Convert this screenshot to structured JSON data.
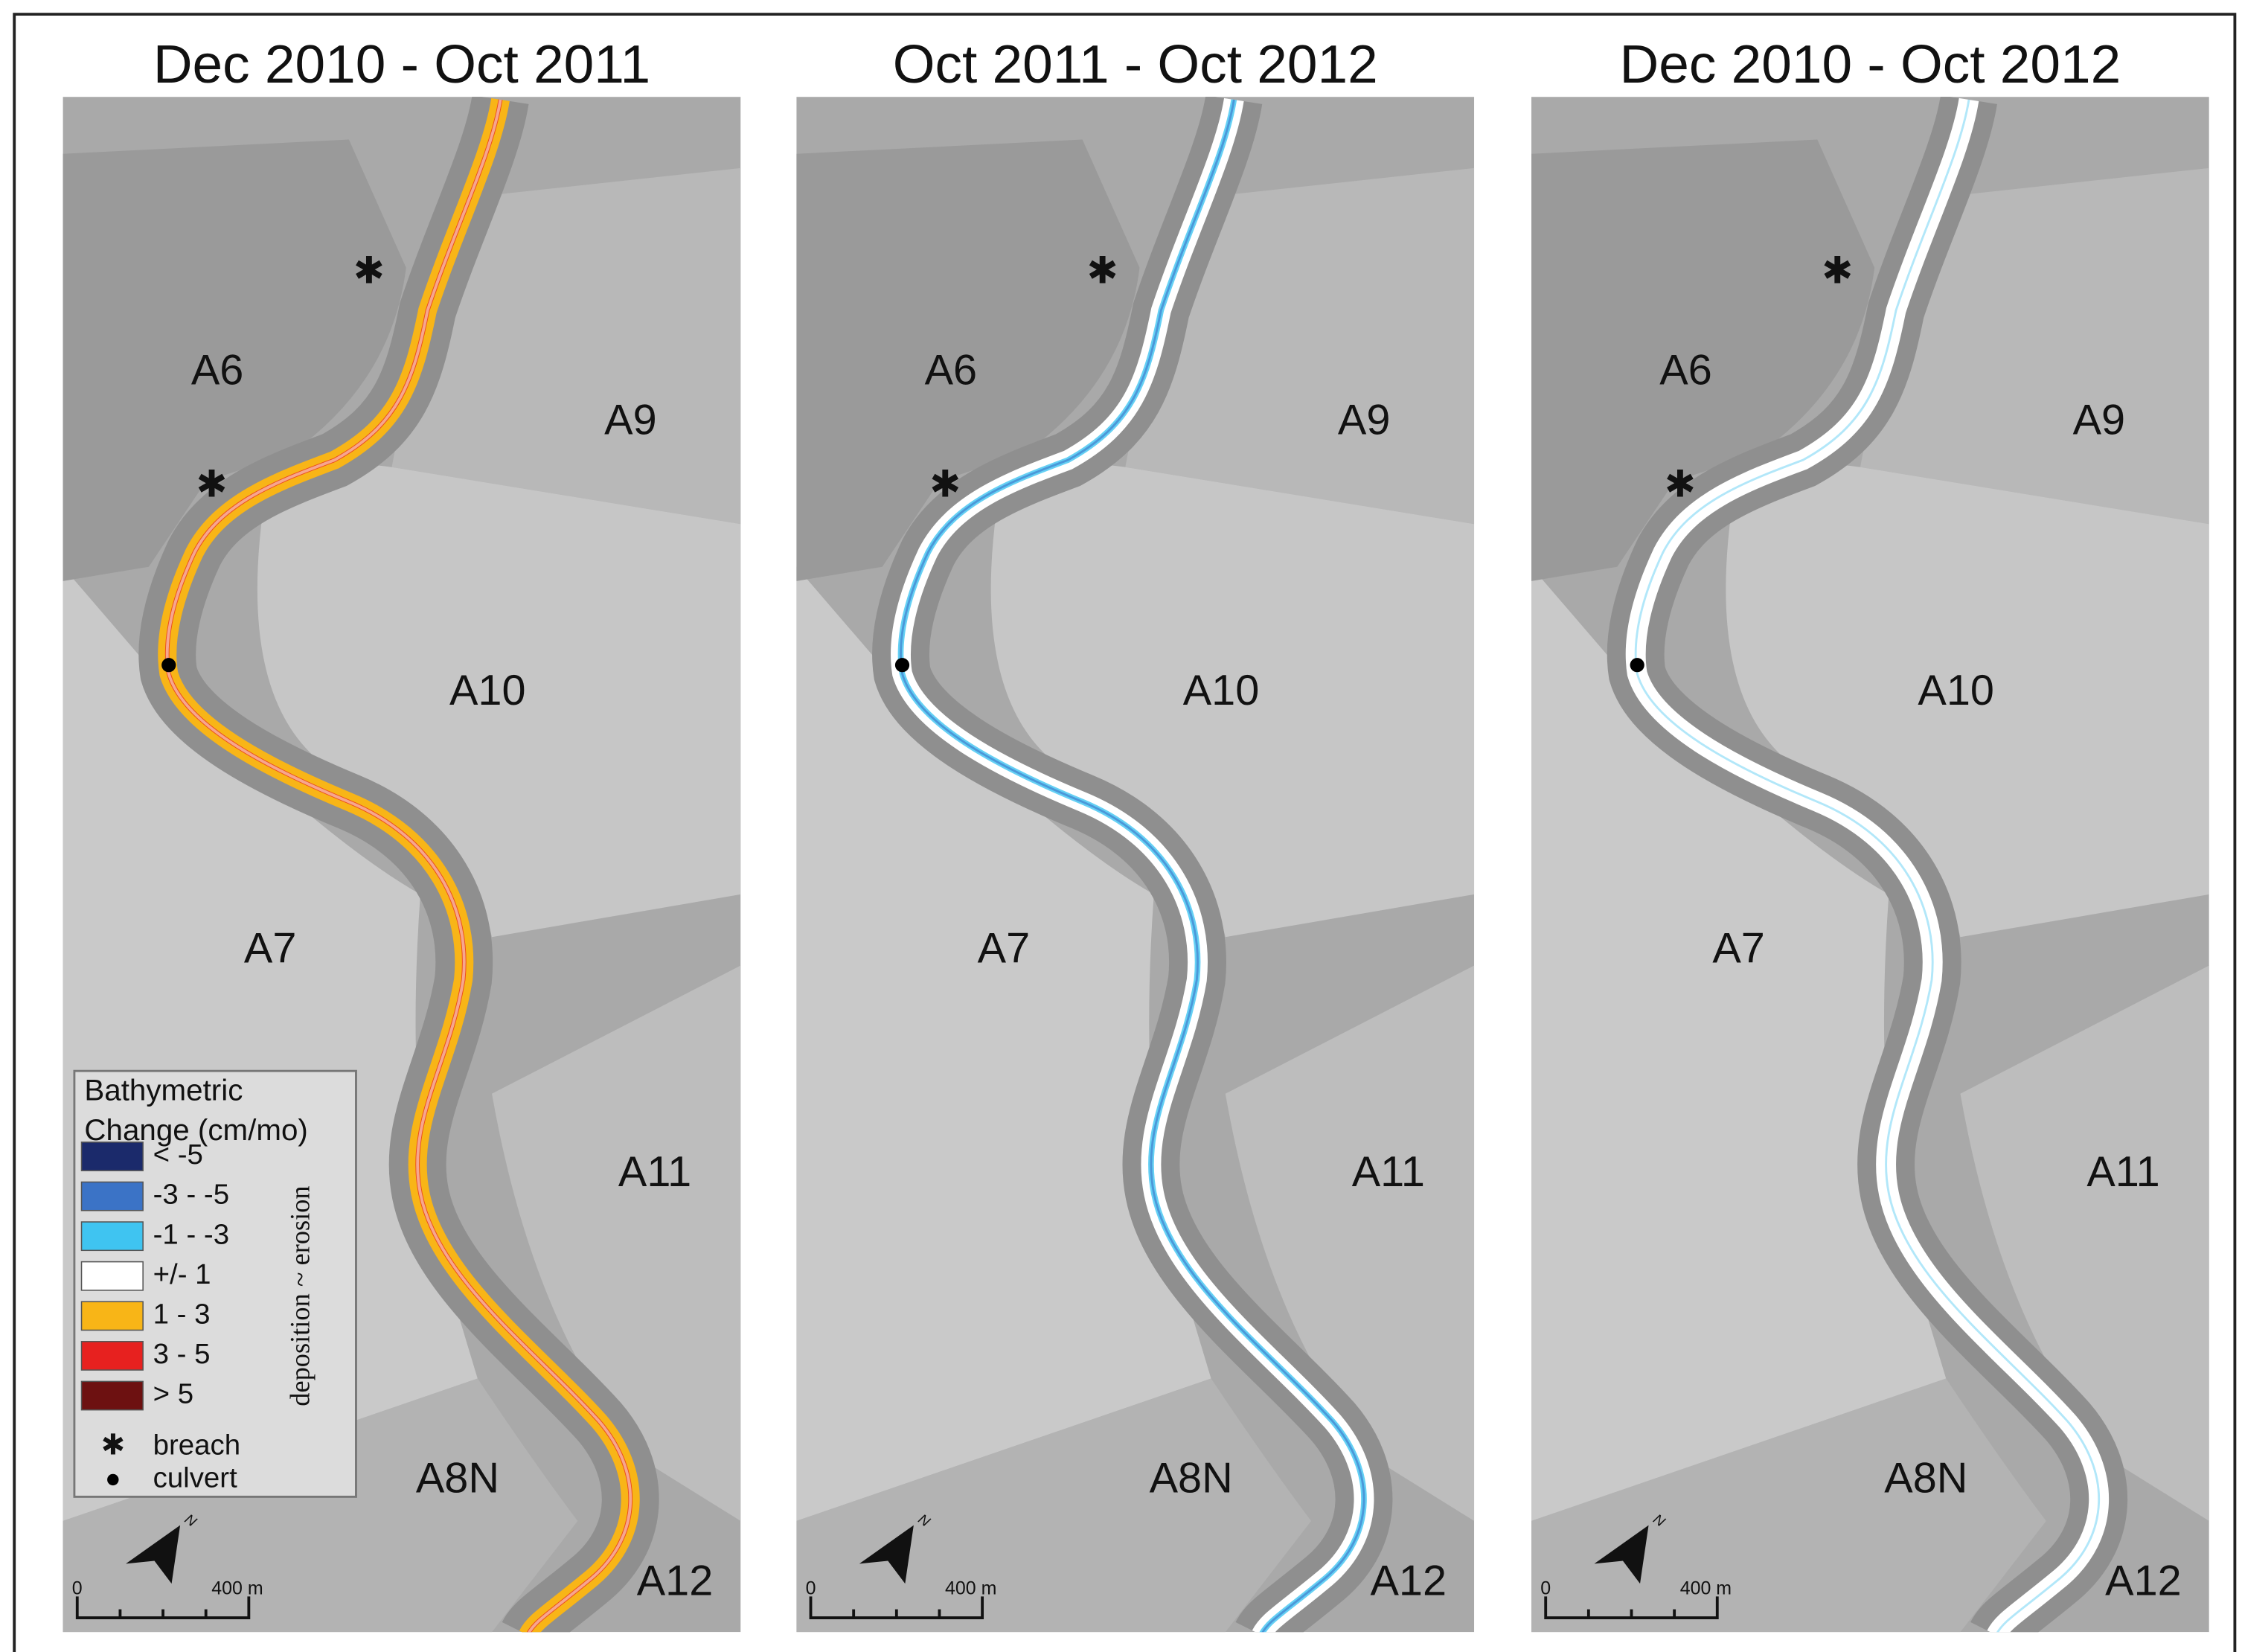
{
  "panels": [
    {
      "title": "Dec 2010 - Oct 2011",
      "labels": [
        "A6",
        "A9",
        "A10",
        "A7",
        "A11",
        "A8N",
        "A12"
      ]
    },
    {
      "title": "Oct 2011 - Oct 2012",
      "labels": [
        "A6",
        "A9",
        "A10",
        "A7",
        "A11",
        "A8N",
        "A12"
      ]
    },
    {
      "title": "Dec 2010 - Oct 2012",
      "labels": [
        "A6",
        "A9",
        "A10",
        "A7",
        "A11",
        "A8N",
        "A12"
      ]
    }
  ],
  "legend": {
    "title_lines": [
      "Bathymetric",
      "Change (cm/mo)"
    ],
    "items": [
      {
        "label": "< -5",
        "color": "#1b2a6b"
      },
      {
        "label": "-3 - -5",
        "color": "#3b73c6"
      },
      {
        "label": "-1 - -3",
        "color": "#3fc4f1"
      },
      {
        "label": "+/- 1",
        "color": "#ffffff"
      },
      {
        "label": "1 - 3",
        "color": "#f8b517"
      },
      {
        "label": "3 - 5",
        "color": "#e7211f"
      },
      {
        "label": "> 5",
        "color": "#6d1111"
      }
    ],
    "symbols": [
      "breach",
      "culvert"
    ],
    "side_label": "deposition ~ erosion"
  },
  "scale_bar": {
    "start": "0",
    "end": "400 m"
  },
  "north": "N"
}
